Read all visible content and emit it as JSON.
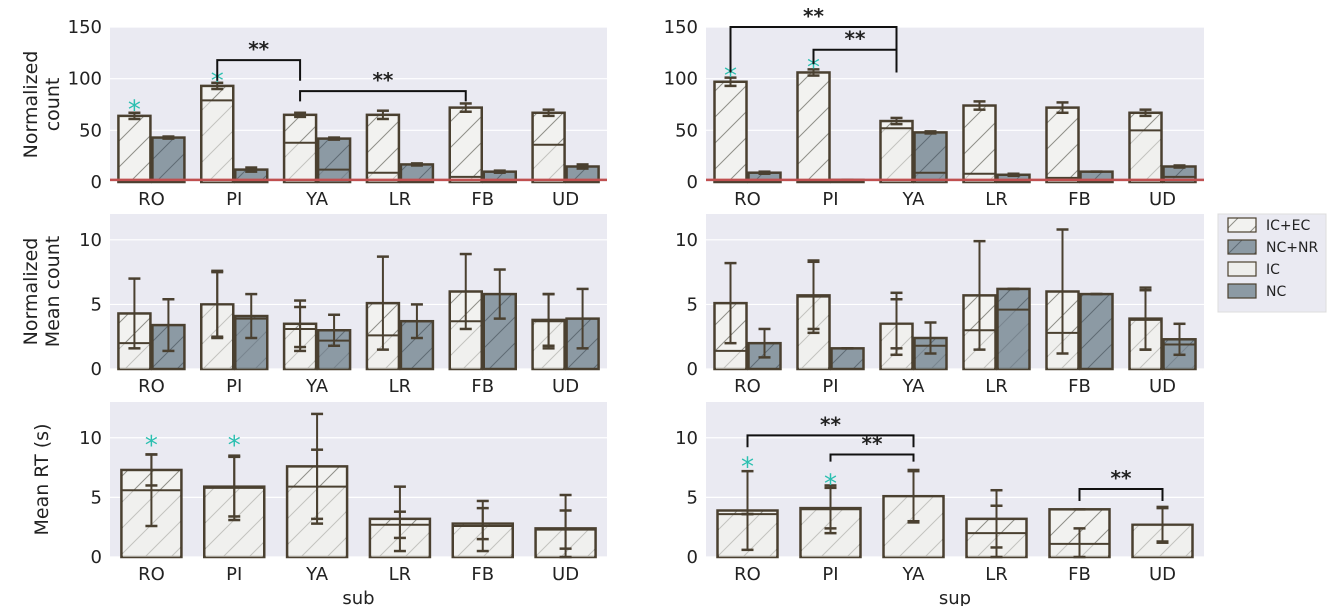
{
  "figure": {
    "legend": [
      "IC+EC",
      "NC+NR",
      "IC",
      "NC"
    ],
    "colors": {
      "panel_bg": "#eaeaf2",
      "hatched_fill": "#f2f2f0",
      "gray_fill": "#8c9aa4",
      "ic_fill": "#eeeeec",
      "nc_fill": "#8c9aa4",
      "edge": "#4a4030",
      "baseline": "#c05050",
      "star": "#2bbfb0",
      "bracket": "#111111"
    }
  },
  "chart_data": [
    {
      "id": "sub-count",
      "type": "bar",
      "categories": [
        "RO",
        "PI",
        "YA",
        "LR",
        "FB",
        "UD"
      ],
      "ylabel": "Normalized\ncount",
      "xlabel": "",
      "ylim": [
        0,
        150
      ],
      "yticks": [
        0,
        50,
        100,
        150
      ],
      "grid": true,
      "series": [
        {
          "name": "IC+EC",
          "values": [
            64,
            93,
            65,
            65,
            72,
            67
          ],
          "err": [
            3,
            3,
            2,
            4,
            4,
            3
          ],
          "pattern": "hatched"
        },
        {
          "name": "NC+NR",
          "values": [
            43,
            12,
            42,
            17,
            10,
            15
          ],
          "err": [
            1,
            2,
            1,
            1,
            1,
            2
          ],
          "pattern": "gray"
        },
        {
          "name": "IC",
          "values": [
            null,
            79,
            38,
            9,
            5,
            36
          ],
          "pattern": "light"
        },
        {
          "name": "NC",
          "values": [
            null,
            null,
            12,
            null,
            null,
            null
          ],
          "pattern": "gray"
        }
      ],
      "baseline": 2,
      "stars": [
        {
          "category": "RO",
          "y": 75
        },
        {
          "category": "PI",
          "y": 103
        }
      ],
      "sig": [
        {
          "from": "PI",
          "to": "YA",
          "label": "**",
          "y": 118,
          "side": 0,
          "drop": 20
        },
        {
          "from": "YA",
          "to": "FB",
          "label": "**",
          "y": 88,
          "side": 0,
          "drop": 10
        }
      ]
    },
    {
      "id": "sup-count",
      "type": "bar",
      "categories": [
        "RO",
        "PI",
        "YA",
        "LR",
        "FB",
        "UD"
      ],
      "ylabel": "",
      "xlabel": "",
      "ylim": [
        0,
        150
      ],
      "yticks": [
        0,
        50,
        100,
        150
      ],
      "grid": true,
      "series": [
        {
          "name": "IC+EC",
          "values": [
            97,
            106,
            59,
            74,
            72,
            67
          ],
          "err": [
            4,
            3,
            3,
            4,
            5,
            3
          ],
          "pattern": "hatched"
        },
        {
          "name": "NC+NR",
          "values": [
            9,
            2,
            48,
            7,
            10,
            15
          ],
          "err": [
            1,
            0,
            1,
            1,
            0,
            1
          ],
          "pattern": "gray"
        },
        {
          "name": "IC",
          "values": [
            null,
            null,
            52,
            8,
            4,
            50
          ],
          "pattern": "light"
        },
        {
          "name": "NC",
          "values": [
            null,
            null,
            9,
            null,
            null,
            5
          ],
          "pattern": "gray"
        }
      ],
      "baseline": 2,
      "stars": [
        {
          "category": "RO",
          "y": 108
        },
        {
          "category": "PI",
          "y": 116
        }
      ],
      "sig": [
        {
          "from": "RO",
          "to": "YA",
          "label": "**",
          "y": 150,
          "side": 0,
          "drop": 44
        },
        {
          "from": "PI",
          "to": "YA",
          "label": "**",
          "y": 128,
          "side": 0,
          "drop": 14
        }
      ]
    },
    {
      "id": "sub-mean",
      "type": "bar",
      "categories": [
        "RO",
        "PI",
        "YA",
        "LR",
        "FB",
        "UD"
      ],
      "ylabel": "Normalized\nMean count",
      "xlabel": "",
      "ylim": [
        0,
        12
      ],
      "yticks": [
        0,
        5,
        10
      ],
      "grid": true,
      "series": [
        {
          "name": "IC+EC",
          "values": [
            4.3,
            5.0,
            3.5,
            5.1,
            6.0,
            3.8
          ],
          "err": [
            2.7,
            2.6,
            1.8,
            3.6,
            2.9,
            2.0
          ],
          "pattern": "hatched"
        },
        {
          "name": "NC+NR",
          "values": [
            3.4,
            4.1,
            3.0,
            3.7,
            5.8,
            3.9
          ],
          "err": [
            2.0,
            1.7,
            1.2,
            1.3,
            1.9,
            2.3
          ],
          "pattern": "gray"
        },
        {
          "name": "IC",
          "values": [
            2.0,
            5.0,
            3.1,
            2.6,
            3.7,
            3.7
          ],
          "err": [
            null,
            2.5,
            1.7,
            null,
            null,
            2.1
          ],
          "pattern": "light"
        },
        {
          "name": "NC",
          "values": [
            null,
            3.9,
            2.2,
            null,
            null,
            null
          ],
          "pattern": "gray"
        }
      ],
      "baseline": null,
      "stars": [],
      "sig": []
    },
    {
      "id": "sup-mean",
      "type": "bar",
      "categories": [
        "RO",
        "PI",
        "YA",
        "LR",
        "FB",
        "UD"
      ],
      "ylabel": "",
      "xlabel": "",
      "ylim": [
        0,
        12
      ],
      "yticks": [
        0,
        5,
        10
      ],
      "grid": true,
      "series": [
        {
          "name": "IC+EC",
          "values": [
            5.1,
            5.7,
            3.5,
            5.7,
            6.0,
            3.9
          ],
          "err": [
            3.1,
            2.6,
            2.4,
            4.2,
            4.8,
            2.4
          ],
          "pattern": "hatched"
        },
        {
          "name": "NC+NR",
          "values": [
            2.0,
            1.6,
            2.4,
            6.2,
            5.8,
            2.3
          ],
          "err": [
            1.1,
            0,
            1.2,
            0,
            0,
            1.2
          ],
          "pattern": "gray"
        },
        {
          "name": "IC",
          "values": [
            1.4,
            5.6,
            3.5,
            3.0,
            2.8,
            3.8
          ],
          "err": [
            null,
            2.8,
            1.9,
            null,
            null,
            2.3
          ],
          "pattern": "light"
        },
        {
          "name": "NC",
          "values": [
            null,
            null,
            1.8,
            4.6,
            null,
            1.9
          ],
          "pattern": "gray"
        }
      ],
      "baseline": null,
      "stars": [],
      "sig": []
    },
    {
      "id": "sub-rt",
      "type": "bar",
      "categories": [
        "RO",
        "PI",
        "YA",
        "LR",
        "FB",
        "UD"
      ],
      "ylabel": "Mean RT (s)",
      "xlabel": "sub",
      "ylim": [
        0,
        13
      ],
      "yticks": [
        0,
        5,
        10
      ],
      "grid": true,
      "series": [
        {
          "name": "IC+EC",
          "values": [
            7.3,
            5.9,
            7.6,
            3.2,
            2.8,
            2.4
          ],
          "err": [
            1.3,
            2.5,
            4.4,
            2.7,
            1.3,
            2.8
          ],
          "pattern": "hatched"
        },
        {
          "name": "IC",
          "values": [
            5.6,
            5.8,
            5.9,
            2.7,
            2.6,
            2.3
          ],
          "err": [
            3.0,
            2.7,
            3.1,
            1.1,
            2.1,
            1.6
          ],
          "pattern": "light"
        }
      ],
      "baseline": null,
      "stars": [
        {
          "category": "RO",
          "y": 9.8
        },
        {
          "category": "PI",
          "y": 9.8
        }
      ],
      "sig": []
    },
    {
      "id": "sup-rt",
      "type": "bar",
      "categories": [
        "RO",
        "PI",
        "YA",
        "LR",
        "FB",
        "UD"
      ],
      "ylabel": "",
      "xlabel": "sup",
      "ylim": [
        0,
        13
      ],
      "yticks": [
        0,
        5,
        10
      ],
      "grid": true,
      "series": [
        {
          "name": "IC+EC",
          "values": [
            3.9,
            4.1,
            5.1,
            3.2,
            4.0,
            2.7
          ],
          "err": [
            3.3,
            1.7,
            2.1,
            2.4,
            0,
            1.5
          ],
          "pattern": "hatched"
        },
        {
          "name": "IC",
          "values": [
            3.6,
            4.0,
            5.1,
            2.0,
            1.1,
            2.7
          ],
          "err": [
            0,
            2.0,
            2.2,
            2.3,
            1.3,
            1.4
          ],
          "pattern": "light"
        }
      ],
      "baseline": null,
      "stars": [
        {
          "category": "RO",
          "y": 8.0
        },
        {
          "category": "PI",
          "y": 6.6
        }
      ],
      "sig": [
        {
          "from": "RO",
          "to": "YA",
          "label": "**",
          "y": 10.2,
          "side": 0,
          "drop": 1.0
        },
        {
          "from": "PI",
          "to": "YA",
          "label": "**",
          "y": 8.6,
          "side": 0,
          "drop": 0.6
        },
        {
          "from": "FB",
          "to": "UD",
          "label": "**",
          "y": 5.7,
          "side": 0,
          "drop": 1.0
        }
      ]
    }
  ]
}
